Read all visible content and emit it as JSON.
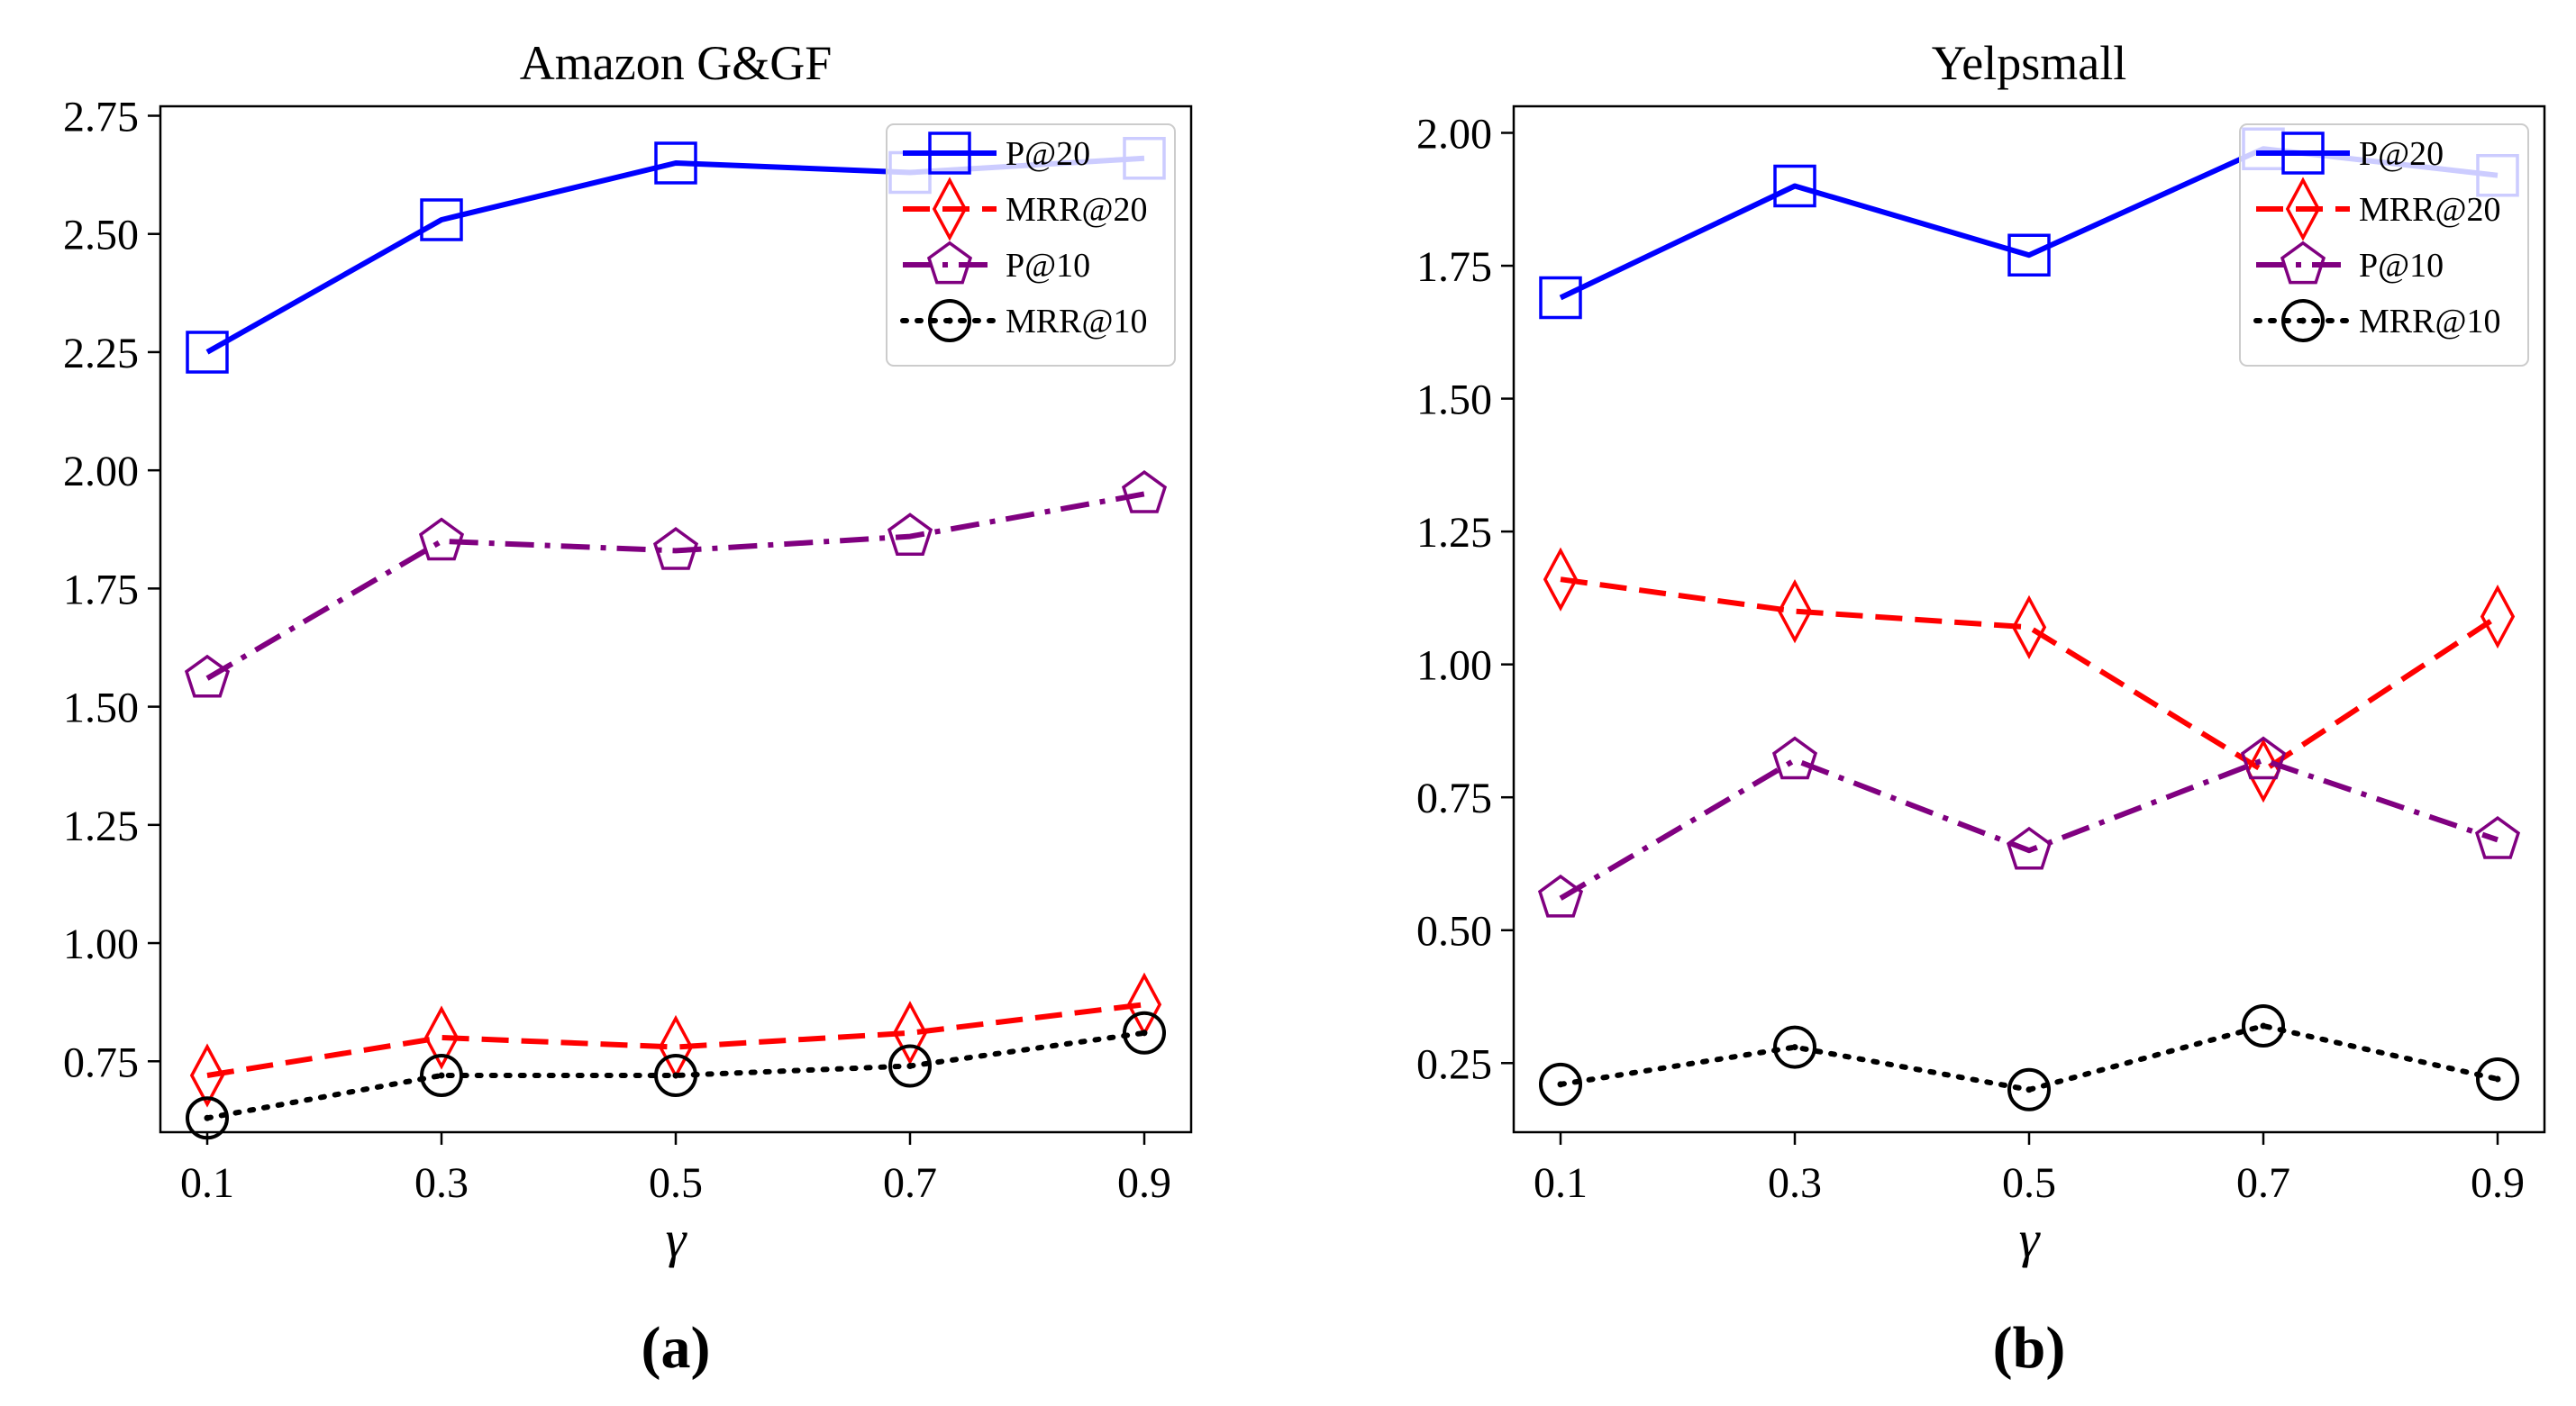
{
  "figure": {
    "panels": [
      "(a)",
      "(b)"
    ]
  },
  "chart_data": [
    {
      "type": "line",
      "panel_label": "(a)",
      "title": "Amazon G&GF",
      "xlabel": "γ",
      "ylabel": "",
      "categories": [
        "0.1",
        "0.3",
        "0.5",
        "0.7",
        "0.9"
      ],
      "ylim": [
        0.6,
        2.77
      ],
      "yticks": [
        "0.75",
        "1.00",
        "1.25",
        "1.50",
        "1.75",
        "2.00",
        "2.25",
        "2.50",
        "2.75"
      ],
      "ytick_values": [
        0.75,
        1.0,
        1.25,
        1.5,
        1.75,
        2.0,
        2.25,
        2.5,
        2.75
      ],
      "legend_position": "upper-right",
      "grid": false,
      "series": [
        {
          "name": "P@20",
          "values": [
            2.25,
            2.53,
            2.65,
            2.63,
            2.66
          ],
          "color": "#0000ff",
          "line_style": "solid",
          "marker": "square"
        },
        {
          "name": "MRR@20",
          "values": [
            0.72,
            0.8,
            0.78,
            0.81,
            0.87
          ],
          "color": "#ff0000",
          "line_style": "dashed",
          "marker": "diamond"
        },
        {
          "name": "P@10",
          "values": [
            1.56,
            1.85,
            1.83,
            1.86,
            1.95
          ],
          "color": "#800080",
          "line_style": "dashdot",
          "marker": "pentagon"
        },
        {
          "name": "MRR@10",
          "values": [
            0.63,
            0.72,
            0.72,
            0.74,
            0.81
          ],
          "color": "#000000",
          "line_style": "dotted",
          "marker": "circle"
        }
      ]
    },
    {
      "type": "line",
      "panel_label": "(b)",
      "title": "Yelpsmall",
      "xlabel": "γ",
      "ylabel": "",
      "categories": [
        "0.1",
        "0.3",
        "0.5",
        "0.7",
        "0.9"
      ],
      "ylim": [
        0.12,
        2.05
      ],
      "yticks": [
        "0.25",
        "0.50",
        "0.75",
        "1.00",
        "1.25",
        "1.50",
        "1.75",
        "2.00"
      ],
      "ytick_values": [
        0.25,
        0.5,
        0.75,
        1.0,
        1.25,
        1.5,
        1.75,
        2.0
      ],
      "legend_position": "upper-right",
      "grid": false,
      "series": [
        {
          "name": "P@20",
          "values": [
            1.69,
            1.9,
            1.77,
            1.97,
            1.92
          ],
          "color": "#0000ff",
          "line_style": "solid",
          "marker": "square"
        },
        {
          "name": "MRR@20",
          "values": [
            1.16,
            1.1,
            1.07,
            0.8,
            1.09
          ],
          "color": "#ff0000",
          "line_style": "dashed",
          "marker": "diamond"
        },
        {
          "name": "P@10",
          "values": [
            0.56,
            0.82,
            0.65,
            0.82,
            0.67
          ],
          "color": "#800080",
          "line_style": "dashdot",
          "marker": "pentagon"
        },
        {
          "name": "MRR@10",
          "values": [
            0.21,
            0.28,
            0.2,
            0.32,
            0.22
          ],
          "color": "#000000",
          "line_style": "dotted",
          "marker": "circle"
        }
      ]
    }
  ]
}
